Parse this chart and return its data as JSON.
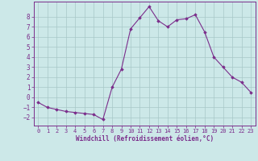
{
  "xlabel": "Windchill (Refroidissement éolien,°C)",
  "x_values": [
    0,
    1,
    2,
    3,
    4,
    5,
    6,
    7,
    8,
    9,
    10,
    11,
    12,
    13,
    14,
    15,
    16,
    17,
    18,
    19,
    20,
    21,
    22,
    23
  ],
  "y_values": [
    -0.5,
    -1.0,
    -1.2,
    -1.4,
    -1.5,
    -1.6,
    -1.7,
    -2.2,
    1.0,
    2.8,
    6.8,
    7.9,
    9.0,
    7.6,
    7.0,
    7.7,
    7.8,
    8.2,
    6.5,
    4.0,
    3.0,
    2.0,
    1.5,
    0.5
  ],
  "line_color": "#7b2d8b",
  "marker_color": "#7b2d8b",
  "bg_color": "#cce8e8",
  "grid_color": "#a8c8c8",
  "axis_label_color": "#7b2d8b",
  "tick_label_color": "#7b2d8b",
  "spine_color": "#7b2d8b",
  "ylim": [
    -2.8,
    9.5
  ],
  "yticks": [
    -2,
    -1,
    0,
    1,
    2,
    3,
    4,
    5,
    6,
    7,
    8
  ],
  "xlim": [
    -0.5,
    23.5
  ],
  "figsize": [
    3.2,
    2.0
  ],
  "dpi": 100
}
